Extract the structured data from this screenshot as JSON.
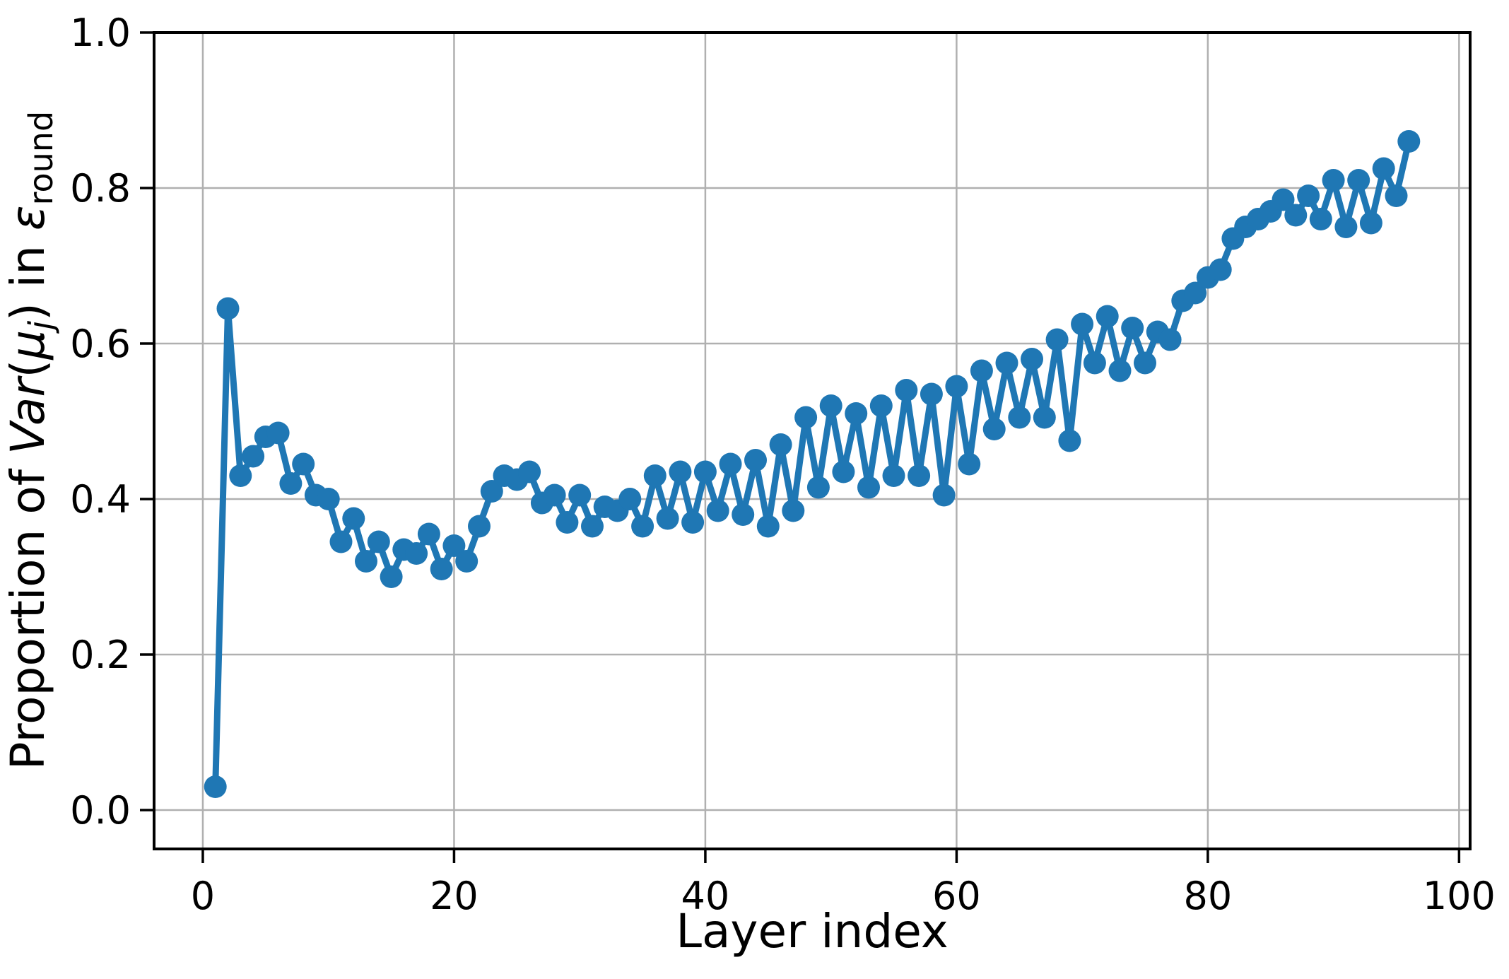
{
  "figure": {
    "background_color": "#ffffff",
    "title": ""
  },
  "chart_data": {
    "type": "line",
    "title": "",
    "xlabel": "Layer index",
    "ylabel": "Proportion of Var(μ_j) in ε_round",
    "ylabel_parts": {
      "prefix": "Proportion of ",
      "var_word": "Var",
      "open_paren": "(",
      "mu": "μ",
      "mu_subscript": "j",
      "close_paren": ")",
      "middle": " in ",
      "epsilon": "ε",
      "epsilon_subscript": "round"
    },
    "legend": null,
    "grid": true,
    "grid_color": "#b0b0b0",
    "line_color": "#1f77b4",
    "marker": "o",
    "xticks": [
      0,
      20,
      40,
      60,
      80,
      100
    ],
    "yticks": [
      "0.0",
      "0.2",
      "0.4",
      "0.6",
      "0.8",
      "1.0"
    ],
    "xlim": [
      -3.88,
      100.88
    ],
    "ylim": [
      -0.05,
      1.0
    ],
    "x": [
      1,
      2,
      3,
      4,
      5,
      6,
      7,
      8,
      9,
      10,
      11,
      12,
      13,
      14,
      15,
      16,
      17,
      18,
      19,
      20,
      21,
      22,
      23,
      24,
      25,
      26,
      27,
      28,
      29,
      30,
      31,
      32,
      33,
      34,
      35,
      36,
      37,
      38,
      39,
      40,
      41,
      42,
      43,
      44,
      45,
      46,
      47,
      48,
      49,
      50,
      51,
      52,
      53,
      54,
      55,
      56,
      57,
      58,
      59,
      60,
      61,
      62,
      63,
      64,
      65,
      66,
      67,
      68,
      69,
      70,
      71,
      72,
      73,
      74,
      75,
      76,
      77,
      78,
      79,
      80,
      81,
      82,
      83,
      84,
      85,
      86,
      87,
      88,
      89,
      90,
      91,
      92,
      93,
      94,
      95,
      96
    ],
    "y": [
      0.03,
      0.645,
      0.43,
      0.455,
      0.48,
      0.485,
      0.42,
      0.445,
      0.405,
      0.4,
      0.345,
      0.375,
      0.32,
      0.345,
      0.3,
      0.335,
      0.33,
      0.355,
      0.31,
      0.34,
      0.32,
      0.365,
      0.41,
      0.43,
      0.425,
      0.435,
      0.395,
      0.405,
      0.37,
      0.405,
      0.365,
      0.39,
      0.385,
      0.4,
      0.365,
      0.43,
      0.375,
      0.435,
      0.37,
      0.435,
      0.385,
      0.445,
      0.38,
      0.45,
      0.365,
      0.47,
      0.385,
      0.505,
      0.415,
      0.52,
      0.435,
      0.51,
      0.415,
      0.52,
      0.43,
      0.54,
      0.43,
      0.535,
      0.405,
      0.545,
      0.445,
      0.565,
      0.49,
      0.575,
      0.505,
      0.58,
      0.505,
      0.605,
      0.475,
      0.625,
      0.575,
      0.635,
      0.565,
      0.62,
      0.575,
      0.615,
      0.605,
      0.655,
      0.665,
      0.685,
      0.695,
      0.735,
      0.75,
      0.76,
      0.77,
      0.785,
      0.765,
      0.79,
      0.76,
      0.81,
      0.75,
      0.81,
      0.755,
      0.825,
      0.79,
      0.86
    ]
  }
}
